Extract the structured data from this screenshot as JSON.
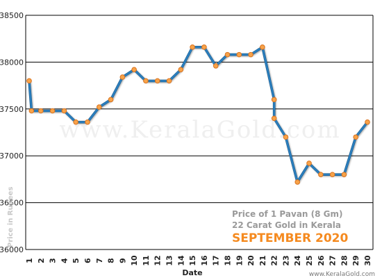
{
  "colors": {
    "line": "#2b7fbf",
    "line_dark": "#1b5e8f",
    "marker_fill": "#f7a34a",
    "marker_stroke": "#d9731f",
    "grid": "#000000",
    "month_text": "#f58a1f"
  },
  "watermark": "www.KeralaGold.com",
  "annotation": {
    "line1": "Price of 1 Pavan (8 Gm)",
    "line2": "22 Carat Gold in Kerala",
    "month": "SEPTEMBER 2020"
  },
  "footer": "www.KeralaGold.com",
  "chart_data": {
    "type": "line",
    "title": "",
    "xlabel": "Date",
    "ylabel": "Price in Rupees",
    "ylim": [
      36000,
      38500
    ],
    "yticks": [
      36000,
      36500,
      37000,
      37500,
      38000,
      38500
    ],
    "x_categories": [
      "1",
      "2",
      "3",
      "4",
      "5",
      "6",
      "7",
      "8",
      "9",
      "10",
      "11",
      "12",
      "13",
      "14",
      "15",
      "16",
      "17",
      "18",
      "19",
      "20",
      "21",
      "22",
      "23",
      "24",
      "25",
      "26",
      "27",
      "28",
      "29",
      "30"
    ],
    "grid": "horizontal",
    "series": [
      {
        "points": [
          {
            "x": 1,
            "y": 37800
          },
          {
            "x": 1.2,
            "y": 37480
          },
          {
            "x": 2,
            "y": 37480
          },
          {
            "x": 3,
            "y": 37480
          },
          {
            "x": 4,
            "y": 37480
          },
          {
            "x": 5,
            "y": 37360
          },
          {
            "x": 6,
            "y": 37360
          },
          {
            "x": 7,
            "y": 37520
          },
          {
            "x": 8,
            "y": 37600
          },
          {
            "x": 9,
            "y": 37840
          },
          {
            "x": 10,
            "y": 37920
          },
          {
            "x": 11,
            "y": 37800
          },
          {
            "x": 12,
            "y": 37800
          },
          {
            "x": 13,
            "y": 37800
          },
          {
            "x": 14,
            "y": 37920
          },
          {
            "x": 15,
            "y": 38160
          },
          {
            "x": 16,
            "y": 38160
          },
          {
            "x": 17,
            "y": 37960
          },
          {
            "x": 18,
            "y": 38080
          },
          {
            "x": 19,
            "y": 38080
          },
          {
            "x": 20,
            "y": 38080
          },
          {
            "x": 21,
            "y": 38160
          },
          {
            "x": 22,
            "y": 37600
          },
          {
            "x": 22,
            "y": 37400
          },
          {
            "x": 23,
            "y": 37200
          },
          {
            "x": 24,
            "y": 36720
          },
          {
            "x": 25,
            "y": 36920
          },
          {
            "x": 26,
            "y": 36800
          },
          {
            "x": 27,
            "y": 36800
          },
          {
            "x": 28,
            "y": 36800
          },
          {
            "x": 29,
            "y": 37200
          },
          {
            "x": 30,
            "y": 37360
          }
        ]
      }
    ]
  }
}
